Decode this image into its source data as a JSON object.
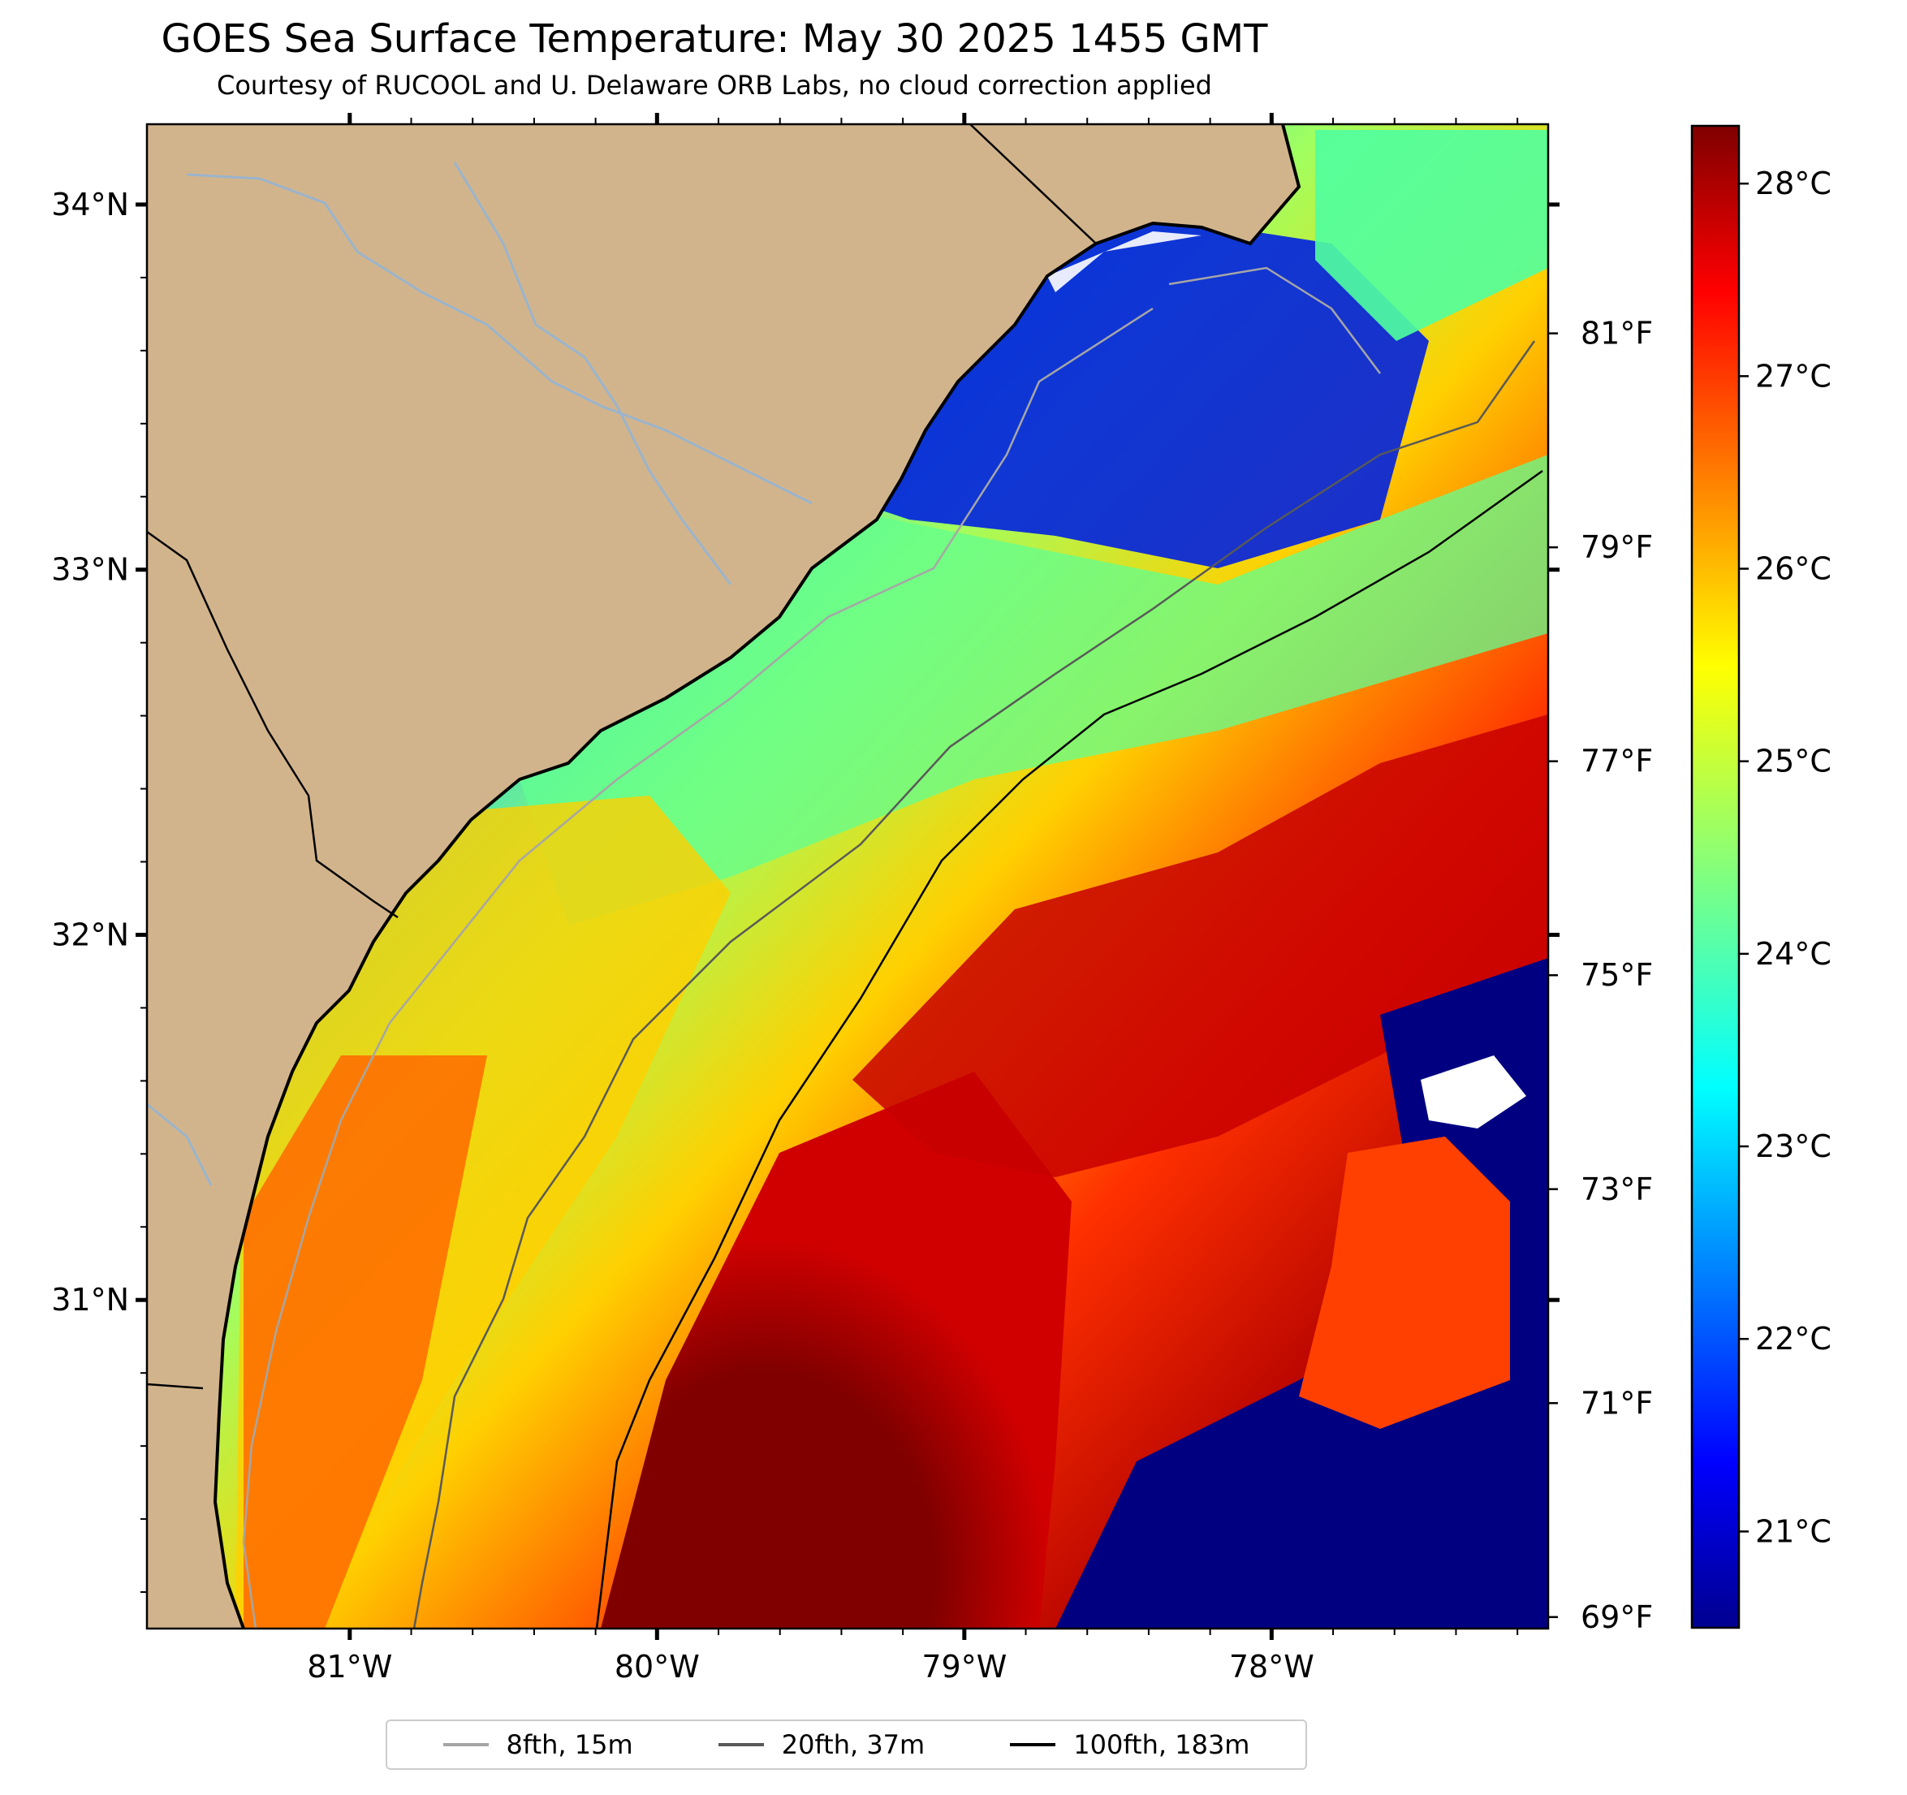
{
  "title": "GOES Sea Surface Temperature: May 30 2025 1455 GMT",
  "subtitle": "Courtesy of RUCOOL and U. Delaware ORB Labs, no cloud correction applied",
  "map": {
    "lat_ticks": [
      "34°N",
      "33°N",
      "32°N",
      "31°N"
    ],
    "lon_ticks": [
      "81°W",
      "80°W",
      "79°W",
      "78°W"
    ],
    "extent": {
      "lon_min": -81.66,
      "lon_max": -77.1,
      "lat_min": 30.1,
      "lat_max": 34.22
    },
    "land_color": "#d2b48c",
    "sst_regions": [
      {
        "region": "nearshore northern shelf",
        "temp_c": 21.0
      },
      {
        "region": "southern Gulf Stream core",
        "temp_c": 28.5
      },
      {
        "region": "eastern open ocean (cold/cloud)",
        "temp_c": 20.5
      }
    ]
  },
  "colorbar": {
    "colormap": "jet",
    "celsius_ticks": [
      {
        "label": "28°C",
        "value": 28
      },
      {
        "label": "27°C",
        "value": 27
      },
      {
        "label": "26°C",
        "value": 26
      },
      {
        "label": "25°C",
        "value": 25
      },
      {
        "label": "24°C",
        "value": 24
      },
      {
        "label": "23°C",
        "value": 23
      },
      {
        "label": "22°C",
        "value": 22
      },
      {
        "label": "21°C",
        "value": 21
      }
    ],
    "fahrenheit_ticks": [
      {
        "label": "81°F",
        "value": 81
      },
      {
        "label": "79°F",
        "value": 79
      },
      {
        "label": "77°F",
        "value": 77
      },
      {
        "label": "75°F",
        "value": 75
      },
      {
        "label": "73°F",
        "value": 73
      },
      {
        "label": "71°F",
        "value": 71
      },
      {
        "label": "69°F",
        "value": 69
      }
    ],
    "range_c": [
      20.5,
      28.3
    ]
  },
  "legend": {
    "items": [
      {
        "label": "8fth, 15m",
        "color": "#a6a6a6"
      },
      {
        "label": "20fth, 37m",
        "color": "#595959"
      },
      {
        "label": "100fth, 183m",
        "color": "#000000"
      }
    ]
  }
}
